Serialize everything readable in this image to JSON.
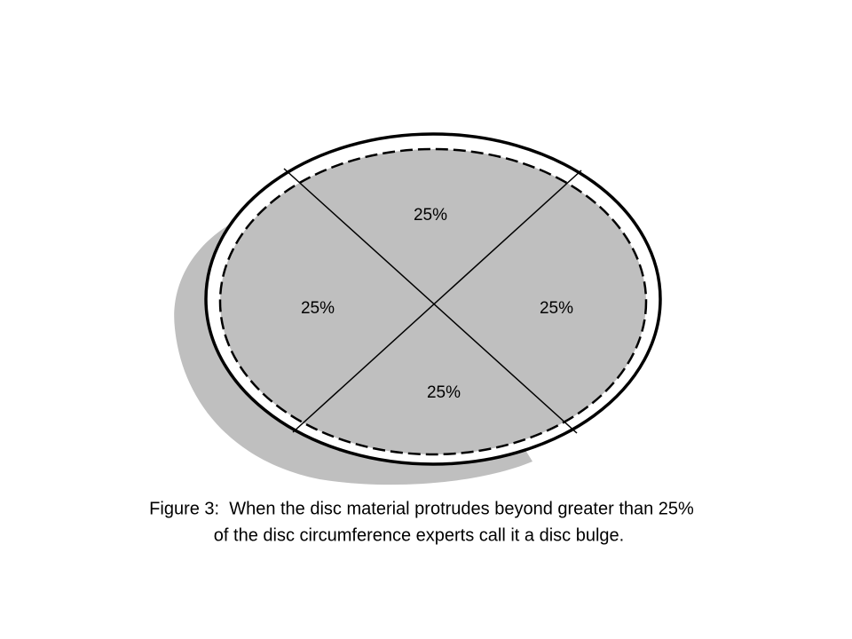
{
  "quadrants": [
    {
      "label": "25%"
    },
    {
      "label": "25%"
    },
    {
      "label": "25%"
    },
    {
      "label": "25%"
    }
  ],
  "caption": {
    "lines": [
      "Figure 3:  When the disc material protrudes beyond greater than 25%",
      "of the disc circumference experts call it a disc bulge."
    ]
  }
}
